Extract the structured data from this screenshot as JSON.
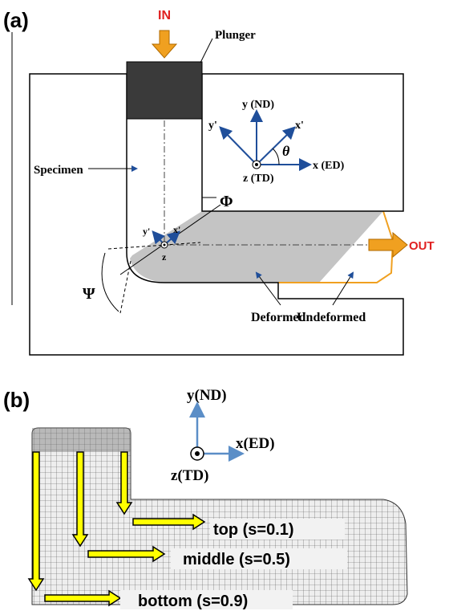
{
  "panel_a": {
    "label": "(a)",
    "in": "IN",
    "plunger": "Plunger",
    "specimen": "Specimen",
    "axes": {
      "y": "y (ND)",
      "y_prime": "y'",
      "x_prime": "x'",
      "theta": "θ",
      "x": "x (ED)",
      "z": "z (TD)"
    },
    "phi": "Φ",
    "psi": "Ψ",
    "out": "OUT",
    "local_axes": {
      "y_prime": "y'",
      "x_prime": "x'",
      "z": "z"
    },
    "deformed": "Deformed",
    "undeformed": "Undeformed"
  },
  "panel_b": {
    "label": "(b)",
    "axes": {
      "y": "y(ND)",
      "x": "x(ED)",
      "z": "z(TD)"
    },
    "paths": [
      "top (s=0.1)",
      "middle (s=0.5)",
      "bottom (s=0.9)"
    ]
  }
}
